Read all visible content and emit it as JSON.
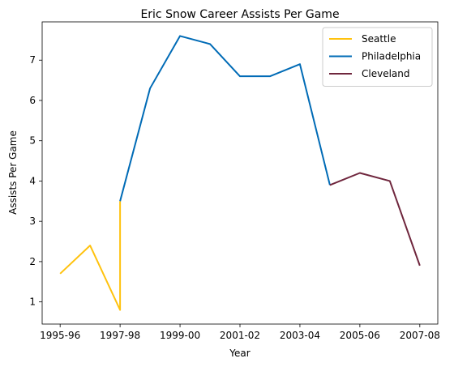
{
  "chart_data": {
    "type": "line",
    "title": "Eric Snow Career Assists Per Game",
    "xlabel": "Year",
    "ylabel": "Assists Per Game",
    "x_tick_labels": [
      "1995-96",
      "1997-98",
      "1999-00",
      "2001-02",
      "2003-04",
      "2005-06",
      "2007-08"
    ],
    "y_ticks": [
      1,
      2,
      3,
      4,
      5,
      6,
      7
    ],
    "xlim": [
      -0.6,
      12.6
    ],
    "ylim": [
      0.45,
      7.95
    ],
    "grid": false,
    "legend_position": "top-right",
    "series": [
      {
        "name": "Seattle",
        "color": "#ffc20e",
        "x": [
          0,
          1,
          2,
          2
        ],
        "y": [
          1.7,
          2.4,
          0.8,
          3.5
        ]
      },
      {
        "name": "Philadelphia",
        "color": "#006bb6",
        "x": [
          2,
          3,
          4,
          5,
          6,
          7,
          8,
          9
        ],
        "y": [
          3.5,
          6.3,
          7.6,
          7.4,
          6.6,
          6.6,
          6.9,
          3.9
        ]
      },
      {
        "name": "Cleveland",
        "color": "#6f263d",
        "x": [
          9,
          10,
          11,
          12
        ],
        "y": [
          3.9,
          4.2,
          4.0,
          1.9
        ]
      }
    ]
  }
}
